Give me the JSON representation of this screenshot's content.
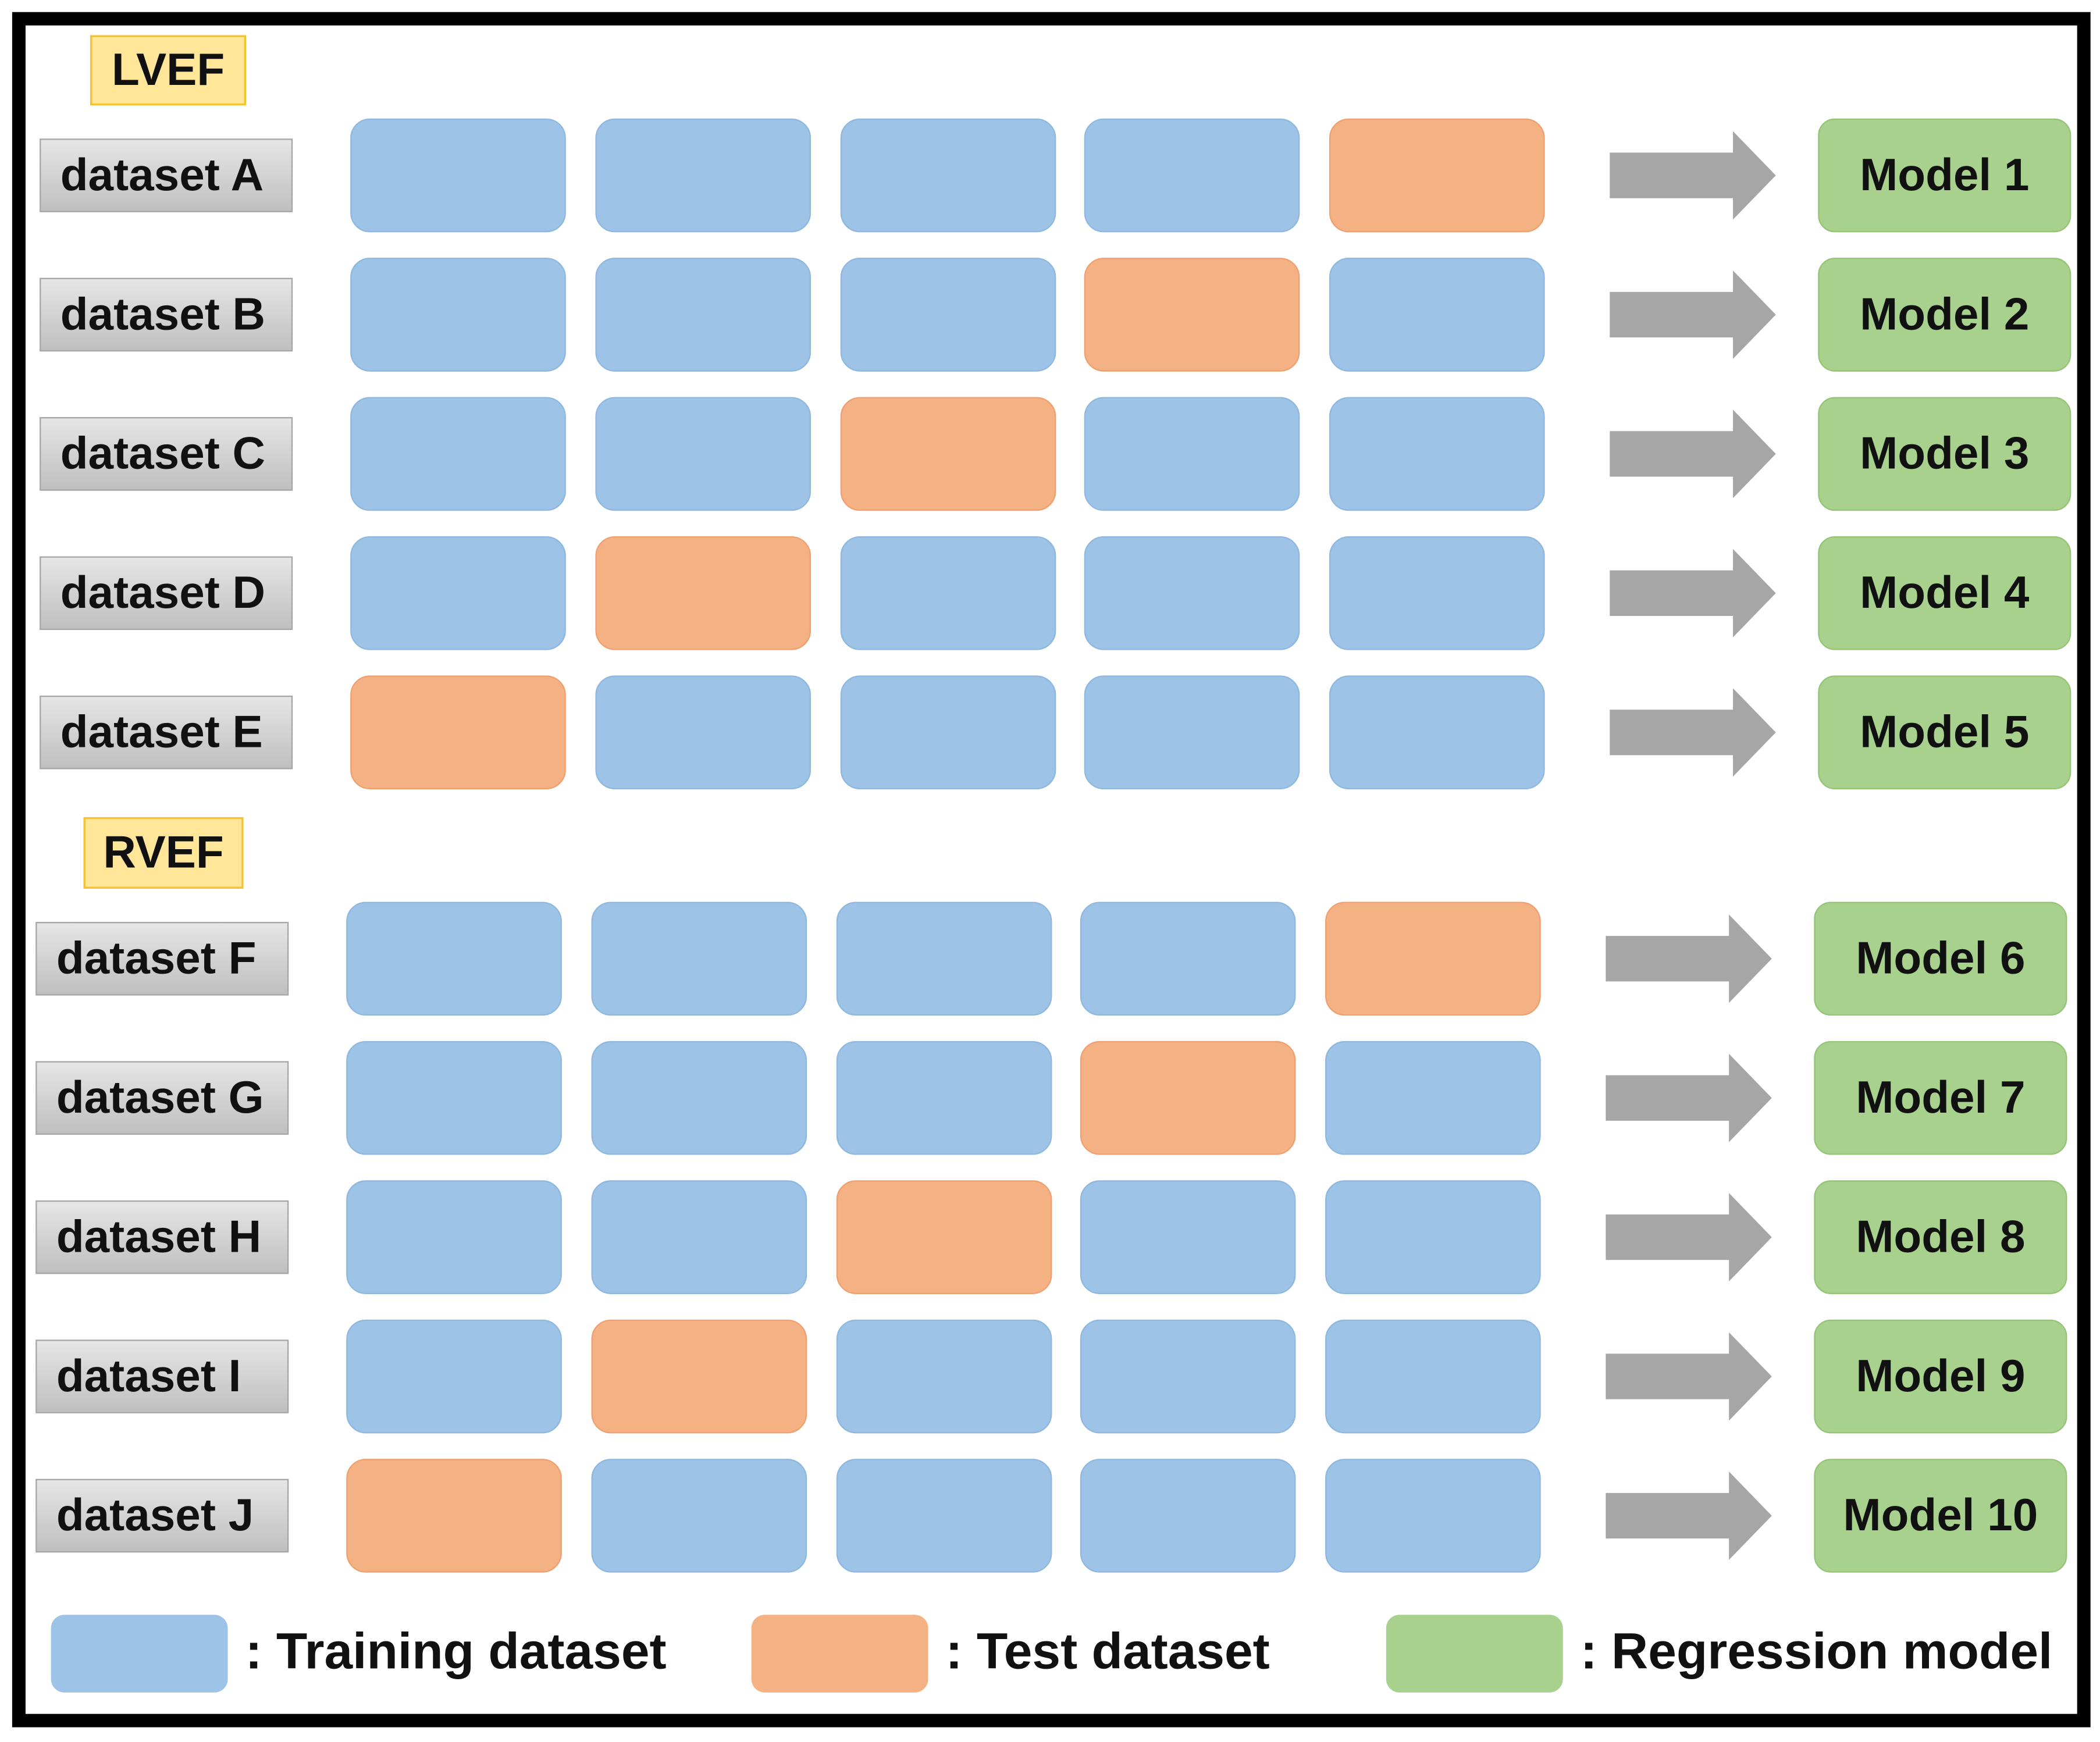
{
  "sections": [
    {
      "title": "LVEF",
      "rows": [
        {
          "dataset": "dataset A",
          "model": "Model 1"
        },
        {
          "dataset": "dataset B",
          "model": "Model 2"
        },
        {
          "dataset": "dataset C",
          "model": "Model 3"
        },
        {
          "dataset": "dataset D",
          "model": "Model 4"
        },
        {
          "dataset": "dataset E",
          "model": "Model 5"
        }
      ]
    },
    {
      "title": "RVEF",
      "rows": [
        {
          "dataset": "dataset F",
          "model": "Model 6"
        },
        {
          "dataset": "dataset G",
          "model": "Model 7"
        },
        {
          "dataset": "dataset H",
          "model": "Model 8"
        },
        {
          "dataset": "dataset I",
          "model": "Model 9"
        },
        {
          "dataset": "dataset J",
          "model": "Model 10"
        }
      ]
    }
  ],
  "legend": [
    ": Training dataset",
    ": Test dataset",
    ": Regression model"
  ]
}
